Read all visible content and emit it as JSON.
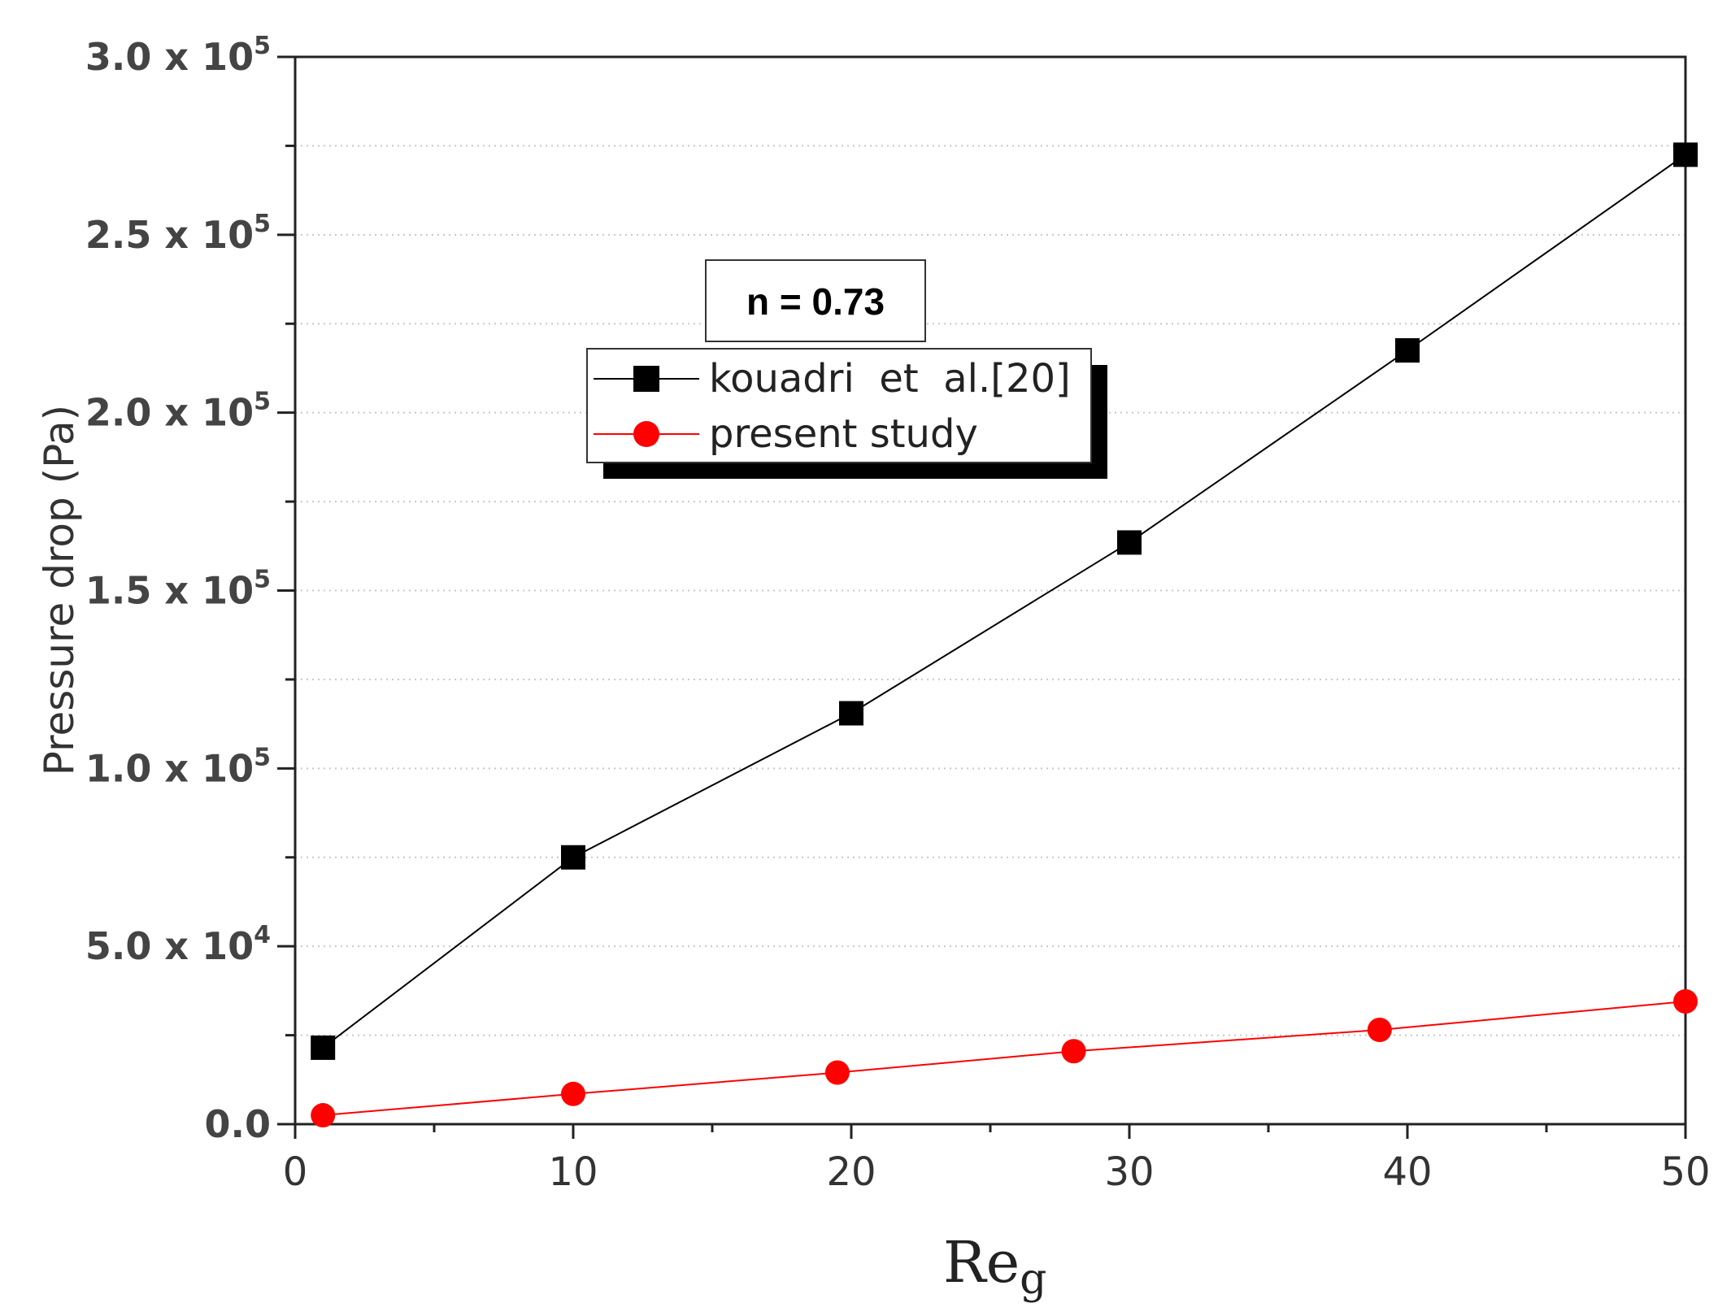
{
  "chart_data": {
    "type": "line",
    "xlabel": "Re",
    "xlabel_sub": "g",
    "ylabel": "Pressure drop (Pa)",
    "xlim": [
      0,
      50
    ],
    "ylim": [
      0,
      300000
    ],
    "x_ticks": [
      "0",
      "10",
      "20",
      "30",
      "40",
      "50"
    ],
    "y_ticks": [
      {
        "value": 0,
        "mant": "0.0",
        "exp": ""
      },
      {
        "value": 50000,
        "mant": "5.0 x 10",
        "exp": "4"
      },
      {
        "value": 100000,
        "mant": "1.0 x 10",
        "exp": "5"
      },
      {
        "value": 150000,
        "mant": "1.5 x 10",
        "exp": "5"
      },
      {
        "value": 200000,
        "mant": "2.0 x 10",
        "exp": "5"
      },
      {
        "value": 250000,
        "mant": "2.5 x 10",
        "exp": "5"
      },
      {
        "value": 300000,
        "mant": "3.0 x 10",
        "exp": "5"
      }
    ],
    "grid": "horizontal dotted",
    "annotation": "n = 0.73",
    "legend_position": "upper-center",
    "series": [
      {
        "name": "kouadri  et  al.[20]",
        "color": "#000000",
        "marker": "square",
        "points": [
          [
            1,
            21500
          ],
          [
            10,
            75000
          ],
          [
            20,
            115500
          ],
          [
            30,
            163500
          ],
          [
            40,
            217500
          ],
          [
            50,
            272500
          ]
        ]
      },
      {
        "name": "present study",
        "color": "#ff0000",
        "marker": "circle",
        "points": [
          [
            1,
            2500
          ],
          [
            10,
            8500
          ],
          [
            19.5,
            14500
          ],
          [
            28,
            20500
          ],
          [
            39,
            26500
          ],
          [
            50,
            34500
          ]
        ]
      }
    ]
  }
}
